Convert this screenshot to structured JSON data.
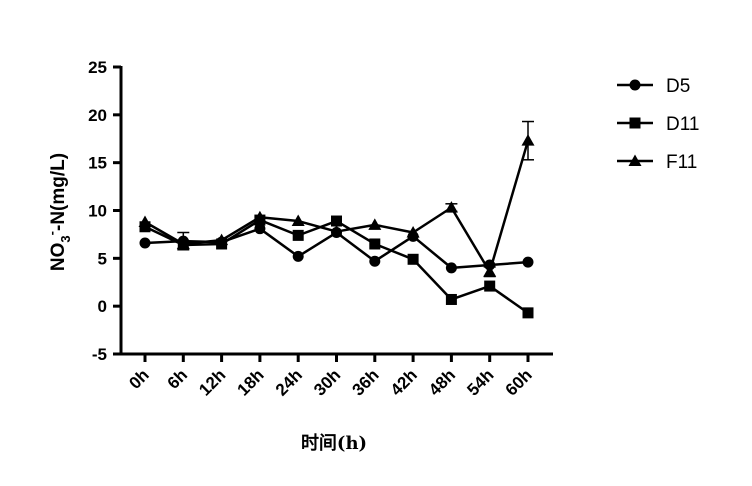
{
  "chart_data": {
    "type": "line",
    "title": "",
    "xlabel": "时间(h)",
    "ylabel_parts": [
      "NO",
      "3",
      "-",
      "-N(mg/L)"
    ],
    "categories": [
      "0h",
      "6h",
      "12h",
      "18h",
      "24h",
      "30h",
      "36h",
      "42h",
      "48h",
      "54h",
      "60h"
    ],
    "ylim": [
      -5,
      25
    ],
    "yticks": [
      "-5",
      "0",
      "5",
      "10",
      "15",
      "20",
      "25"
    ],
    "legend_position": "right",
    "colors": {
      "line": "#000000",
      "background": "#ffffff"
    },
    "series": [
      {
        "name": "D5",
        "marker": "circle",
        "values": [
          6.6,
          6.8,
          6.7,
          8.1,
          5.2,
          7.7,
          4.7,
          7.3,
          4.0,
          4.3,
          4.6
        ]
      },
      {
        "name": "D11",
        "marker": "square",
        "values": [
          8.3,
          6.4,
          6.5,
          9.0,
          7.4,
          8.9,
          6.5,
          4.9,
          0.7,
          2.1,
          -0.7
        ]
      },
      {
        "name": "F11",
        "marker": "triangle",
        "values": [
          8.8,
          6.5,
          6.9,
          9.3,
          8.9,
          7.8,
          8.5,
          7.7,
          10.3,
          3.6,
          17.3
        ],
        "error": [
          0,
          0,
          0,
          0,
          0,
          0,
          0,
          0,
          0.4,
          0.5,
          2.0
        ]
      }
    ],
    "extra_error": {
      "series_index": 0,
      "point_index": 1,
      "value": 0.9
    }
  }
}
